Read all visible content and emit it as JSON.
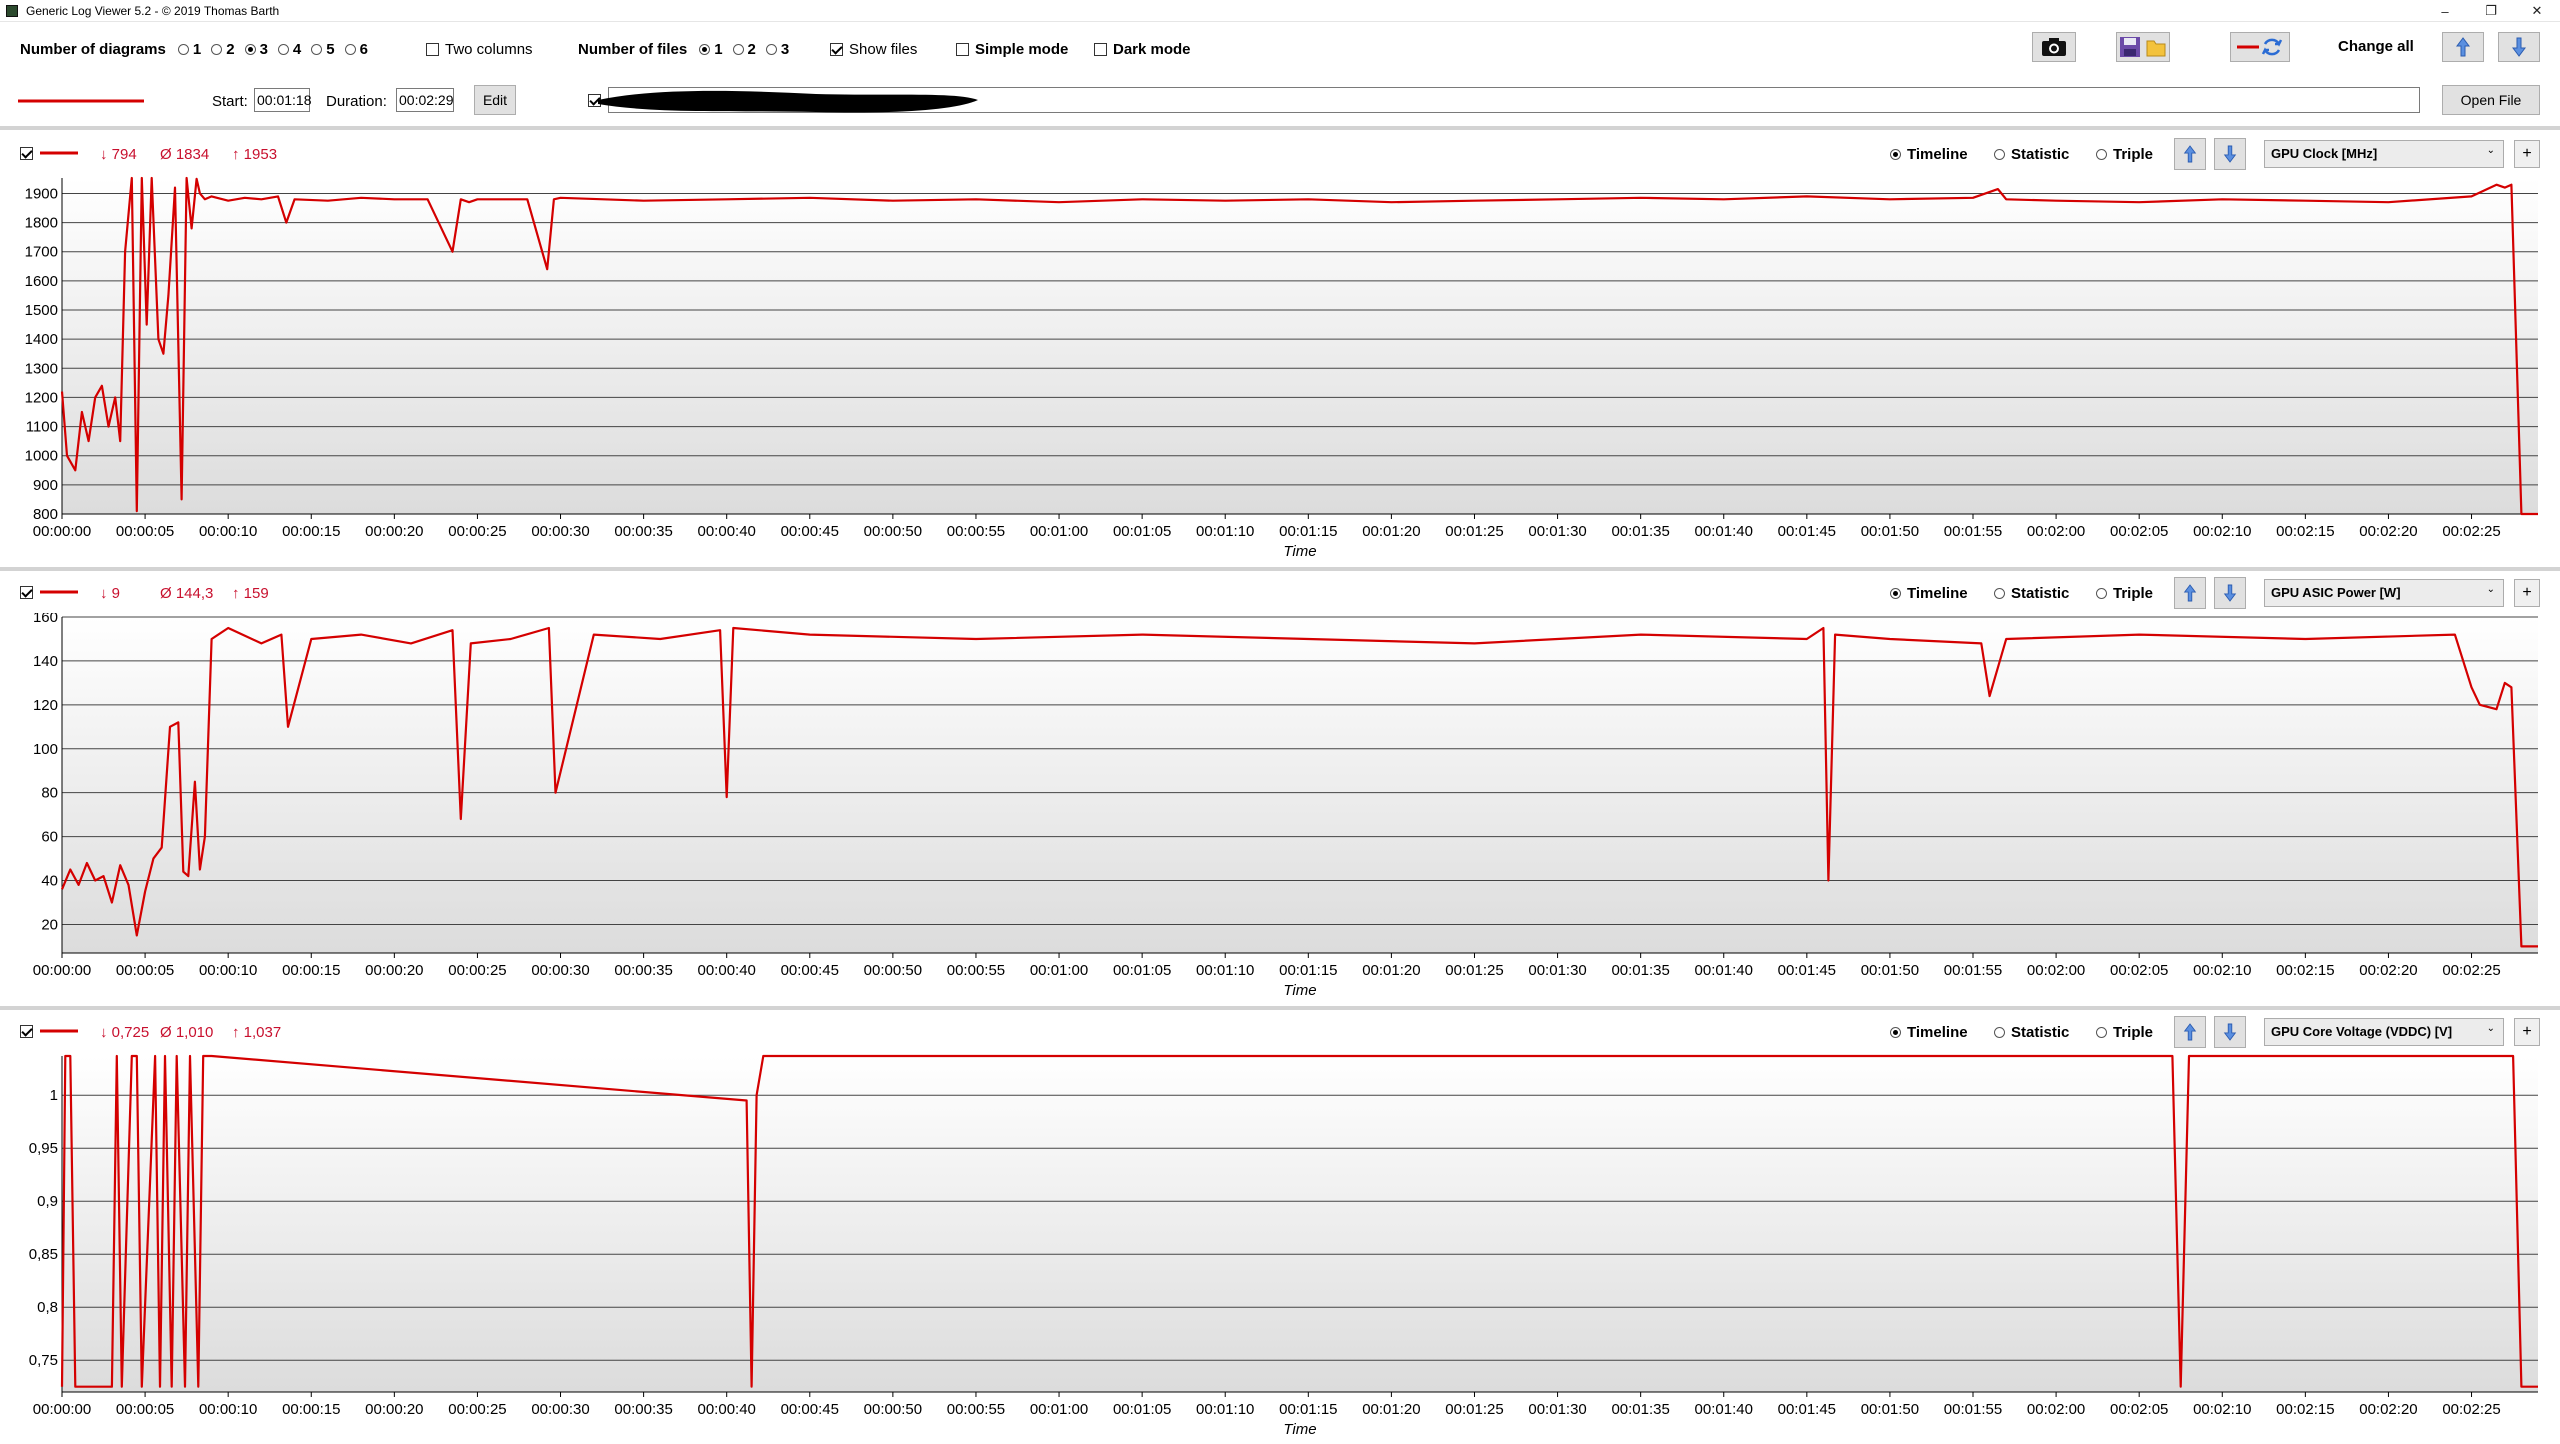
{
  "window": {
    "title": "Generic Log Viewer 5.2 - © 2019 Thomas Barth",
    "minimize_glyph": "–",
    "restore_glyph": "❐",
    "close_glyph": "✕"
  },
  "toolbar": {
    "num_diagrams_label": "Number of diagrams",
    "diagram_options": [
      "1",
      "2",
      "3",
      "4",
      "5",
      "6"
    ],
    "diagram_selected": "3",
    "two_columns_label": "Two columns",
    "num_files_label": "Number of files",
    "file_options": [
      "1",
      "2",
      "3"
    ],
    "file_selected": "1",
    "show_files_label": "Show files",
    "simple_mode_label": "Simple mode",
    "dark_mode_label": "Dark mode",
    "change_all_label": "Change all"
  },
  "file_row": {
    "start_label": "Start:",
    "start_value": "00:01:18",
    "duration_label": "Duration:",
    "duration_value": "00:02:29",
    "edit_label": "Edit",
    "open_file_label": "Open File"
  },
  "colors": {
    "series": "#d40000",
    "grid": "#444444",
    "plot_bg_top": "#ffffff",
    "plot_bg_bottom": "#dcdcdc"
  },
  "panels": [
    {
      "min": "↓ 794",
      "avg": "Ø 1834",
      "max": "↑ 1953",
      "modes": [
        "Timeline",
        "Statistic",
        "Triple"
      ],
      "sensor": "GPU Clock [MHz]"
    },
    {
      "min": "↓ 9",
      "avg": "Ø 144,3",
      "max": "↑ 159",
      "modes": [
        "Timeline",
        "Statistic",
        "Triple"
      ],
      "sensor": "GPU ASIC Power [W]"
    },
    {
      "min": "↓ 0,725",
      "avg": "Ø 1,010",
      "max": "↑ 1,037",
      "modes": [
        "Timeline",
        "Statistic",
        "Triple"
      ],
      "sensor": "GPU Core Voltage (VDDC) [V]"
    }
  ],
  "chart_data": [
    {
      "type": "line",
      "xlabel": "Time",
      "ylabel": "",
      "xlim": [
        0,
        149
      ],
      "ylim": [
        800,
        1953
      ],
      "yticks": [
        "800",
        "900",
        "1000",
        "1100",
        "1200",
        "1300",
        "1400",
        "1500",
        "1600",
        "1700",
        "1800",
        "1900"
      ],
      "ytick_values": [
        800,
        900,
        1000,
        1100,
        1200,
        1300,
        1400,
        1500,
        1600,
        1700,
        1800,
        1900
      ],
      "xticks": [
        "00:00:00",
        "00:00:05",
        "00:00:10",
        "00:00:15",
        "00:00:20",
        "00:00:25",
        "00:00:30",
        "00:00:35",
        "00:00:40",
        "00:00:45",
        "00:00:50",
        "00:00:55",
        "00:01:00",
        "00:01:05",
        "00:01:10",
        "00:01:15",
        "00:01:20",
        "00:01:25",
        "00:01:30",
        "00:01:35",
        "00:01:40",
        "00:01:45",
        "00:01:50",
        "00:01:55",
        "00:02:00",
        "00:02:05",
        "00:02:10",
        "00:02:15",
        "00:02:20",
        "00:02:25"
      ],
      "series": [
        {
          "x": [
            0,
            0.3,
            0.8,
            1.2,
            1.6,
            2,
            2.4,
            2.8,
            3.2,
            3.5,
            3.8,
            4.2,
            4.5,
            4.8,
            5.1,
            5.4,
            5.8,
            6.1,
            6.4,
            6.8,
            7.2,
            7.5,
            7.8,
            8.1,
            8.3,
            8.6,
            9,
            10,
            11,
            12,
            13,
            13.5,
            14,
            16,
            18,
            20,
            22,
            23.5,
            24,
            24.5,
            25,
            28,
            29.2,
            29.6,
            30,
            35,
            40,
            45,
            50,
            55,
            60,
            65,
            70,
            75,
            80,
            85,
            90,
            95,
            100,
            105,
            110,
            115,
            116.5,
            117,
            120,
            125,
            130,
            135,
            140,
            145,
            146.5,
            147,
            147.4,
            148,
            149
          ],
          "y": [
            1220,
            1000,
            950,
            1150,
            1050,
            1200,
            1240,
            1100,
            1200,
            1050,
            1700,
            1953,
            810,
            1953,
            1450,
            1953,
            1400,
            1350,
            1550,
            1920,
            850,
            1953,
            1780,
            1950,
            1900,
            1880,
            1890,
            1875,
            1885,
            1880,
            1890,
            1800,
            1880,
            1875,
            1885,
            1880,
            1880,
            1700,
            1880,
            1870,
            1880,
            1880,
            1640,
            1880,
            1885,
            1875,
            1880,
            1885,
            1875,
            1880,
            1870,
            1880,
            1875,
            1880,
            1870,
            1875,
            1880,
            1885,
            1880,
            1890,
            1880,
            1885,
            1915,
            1880,
            1875,
            1870,
            1880,
            1875,
            1870,
            1890,
            1930,
            1920,
            1930,
            800,
            800
          ]
        }
      ]
    },
    {
      "type": "line",
      "xlabel": "Time",
      "ylabel": "",
      "xlim": [
        0,
        149
      ],
      "ylim": [
        7,
        160
      ],
      "yticks": [
        "20",
        "40",
        "60",
        "80",
        "100",
        "120",
        "140",
        "160"
      ],
      "ytick_values": [
        20,
        40,
        60,
        80,
        100,
        120,
        140,
        160
      ],
      "xticks": [
        "00:00:00",
        "00:00:05",
        "00:00:10",
        "00:00:15",
        "00:00:20",
        "00:00:25",
        "00:00:30",
        "00:00:35",
        "00:00:40",
        "00:00:45",
        "00:00:50",
        "00:00:55",
        "00:01:00",
        "00:01:05",
        "00:01:10",
        "00:01:15",
        "00:01:20",
        "00:01:25",
        "00:01:30",
        "00:01:35",
        "00:01:40",
        "00:01:45",
        "00:01:50",
        "00:01:55",
        "00:02:00",
        "00:02:05",
        "00:02:10",
        "00:02:15",
        "00:02:20",
        "00:02:25"
      ],
      "series": [
        {
          "x": [
            0,
            0.5,
            1,
            1.5,
            2,
            2.5,
            3,
            3.5,
            4,
            4.5,
            5,
            5.5,
            6,
            6.5,
            7,
            7.3,
            7.6,
            8,
            8.3,
            8.6,
            9,
            10,
            12,
            13.2,
            13.6,
            15,
            18,
            21,
            23.5,
            24,
            24.6,
            27,
            29.3,
            29.7,
            32,
            36,
            39.6,
            40,
            40.4,
            45,
            55,
            65,
            75,
            85,
            95,
            105,
            106,
            106.3,
            106.7,
            110,
            115.5,
            116,
            117,
            125,
            135,
            144,
            145,
            145.5,
            146.5,
            147,
            147.4,
            148,
            149
          ],
          "y": [
            36,
            45,
            38,
            48,
            40,
            42,
            30,
            47,
            38,
            15,
            35,
            50,
            55,
            110,
            112,
            44,
            42,
            85,
            45,
            60,
            150,
            155,
            148,
            152,
            110,
            150,
            152,
            148,
            154,
            68,
            148,
            150,
            155,
            80,
            152,
            150,
            154,
            78,
            155,
            152,
            150,
            152,
            150,
            148,
            152,
            150,
            155,
            40,
            152,
            150,
            148,
            124,
            150,
            152,
            150,
            152,
            128,
            120,
            118,
            130,
            128,
            10,
            10
          ]
        }
      ]
    },
    {
      "type": "line",
      "xlabel": "Time",
      "ylabel": "",
      "xlim": [
        0,
        149
      ],
      "ylim": [
        0.72,
        1.037
      ],
      "yticks": [
        "0,75",
        "0,8",
        "0,85",
        "0,9",
        "0,95",
        "1"
      ],
      "ytick_values": [
        0.75,
        0.8,
        0.85,
        0.9,
        0.95,
        1.0
      ],
      "xticks": [
        "00:00:00",
        "00:00:05",
        "00:00:10",
        "00:00:15",
        "00:00:20",
        "00:00:25",
        "00:00:30",
        "00:00:35",
        "00:00:40",
        "00:00:45",
        "00:00:50",
        "00:00:55",
        "00:01:00",
        "00:01:05",
        "00:01:10",
        "00:01:15",
        "00:01:20",
        "00:01:25",
        "00:01:30",
        "00:01:35",
        "00:01:40",
        "00:01:45",
        "00:01:50",
        "00:01:55",
        "00:02:00",
        "00:02:05",
        "00:02:10",
        "00:02:15",
        "00:02:20",
        "00:02:25"
      ],
      "series": [
        {
          "x": [
            0,
            0.2,
            0.5,
            0.8,
            1,
            3,
            3.3,
            3.6,
            4.2,
            4.5,
            4.8,
            5.6,
            5.9,
            6.2,
            6.6,
            6.9,
            7.4,
            7.7,
            8.2,
            8.5,
            9,
            41.2,
            41.5,
            41.8,
            42.2,
            127,
            127.5,
            128,
            147.5,
            148,
            149
          ],
          "y": [
            0.725,
            1.037,
            1.037,
            0.725,
            0.725,
            0.725,
            1.037,
            0.725,
            1.037,
            1.037,
            0.725,
            1.037,
            0.725,
            1.037,
            0.725,
            1.037,
            0.725,
            1.037,
            0.725,
            1.037,
            1.037,
            0.995,
            0.725,
            1.0,
            1.037,
            1.037,
            0.725,
            1.037,
            1.037,
            0.725,
            0.725
          ]
        }
      ]
    }
  ]
}
